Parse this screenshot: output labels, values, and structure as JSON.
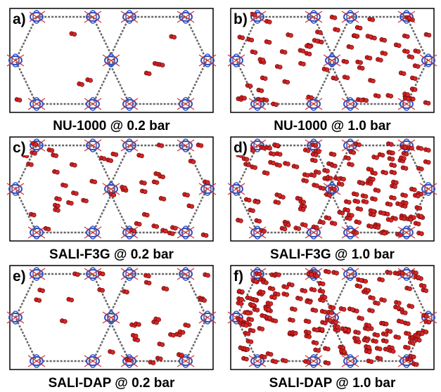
{
  "panels": [
    {
      "label": "a)",
      "caption": "NU-1000 @ 0.2 bar"
    },
    {
      "label": "b)",
      "caption": "NU-1000 @ 1.0 bar"
    },
    {
      "label": "c)",
      "caption": "SALI-F3G @ 0.2 bar"
    },
    {
      "label": "d)",
      "caption": "SALI-F3G @ 1.0 bar"
    },
    {
      "label": "e)",
      "caption": "SALI-DAP @ 0.2 bar"
    },
    {
      "label": "f)",
      "caption": "SALI-DAP @ 1.0 bar"
    }
  ]
}
